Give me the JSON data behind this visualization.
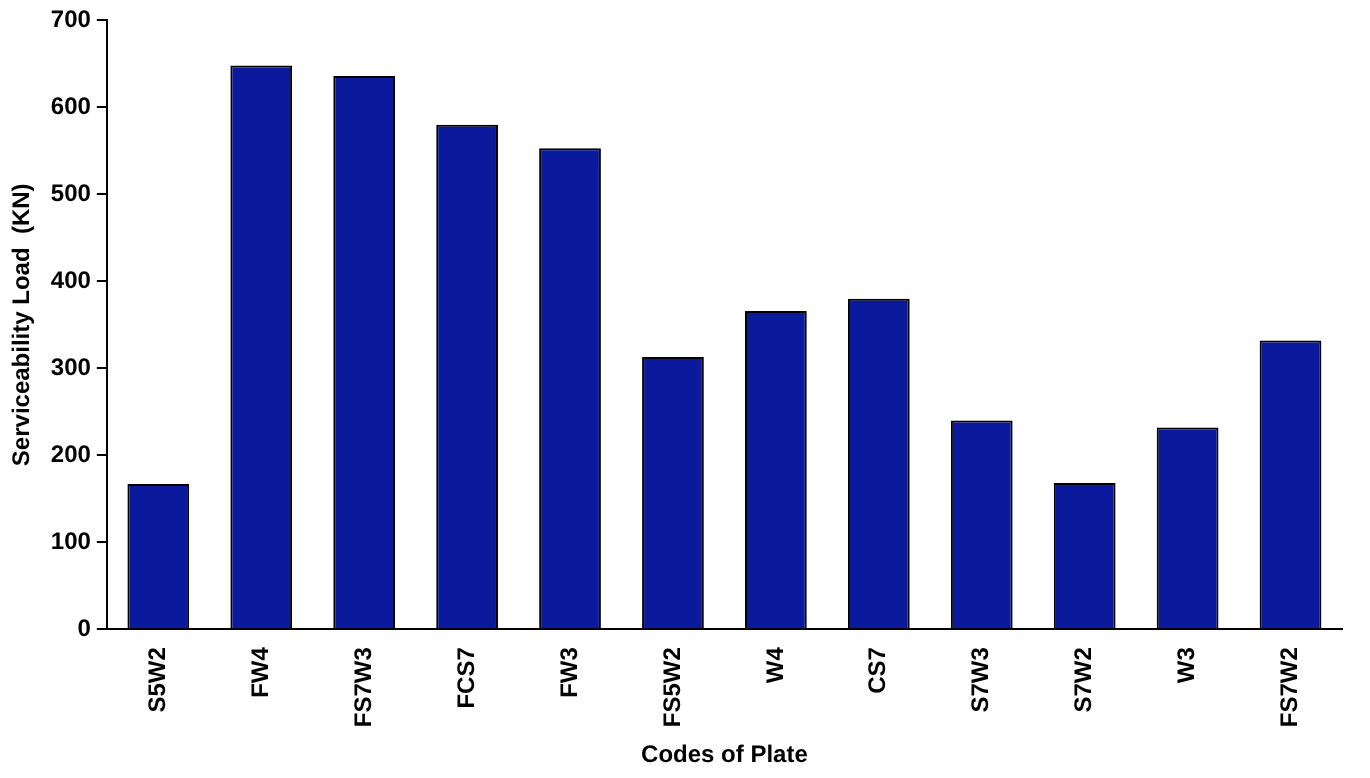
{
  "chart_data": {
    "type": "bar",
    "xlabel": "Codes of Plate",
    "ylabel": "Serviceability Load  (KN)",
    "categories": [
      "S5W2",
      "FW4",
      "FS7W3",
      "FCS7",
      "FW3",
      "FS5W2",
      "W4",
      "CS7",
      "S7W3",
      "S7W2",
      "W3",
      "FS7W2"
    ],
    "values": [
      167,
      648,
      636,
      580,
      553,
      313,
      366,
      380,
      240,
      168,
      232,
      332
    ],
    "color": "#0b1a9c",
    "ylim": [
      0,
      700
    ],
    "yticks": [
      0,
      100,
      200,
      300,
      400,
      500,
      600,
      700
    ],
    "grid": false,
    "legend": false
  }
}
